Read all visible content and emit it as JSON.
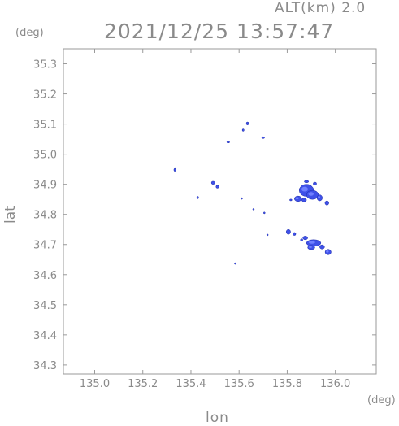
{
  "header": {
    "altitude_label": "ALT(km) 2.0",
    "timestamp": "2021/12/25 13:57:47"
  },
  "axes": {
    "x_unit": "(deg)",
    "y_unit": "(deg)",
    "x_label": "lon",
    "y_label": "lat"
  },
  "colors": {
    "frame": "#9a9a9a",
    "echo": "#3f51e8",
    "echo_light": "#7080ff",
    "echo_dark": "#1c2aa8",
    "text": "#8a8a8a"
  },
  "chart_data": {
    "type": "map",
    "xlim": [
      134.87,
      136.17
    ],
    "ylim": [
      34.27,
      35.35
    ],
    "x_ticks": [
      "135.0",
      "135.2",
      "135.4",
      "135.6",
      "135.8",
      "136.0"
    ],
    "x_tick_values": [
      135.0,
      135.2,
      135.4,
      135.6,
      135.8,
      136.0
    ],
    "y_ticks": [
      "34.3",
      "34.4",
      "34.5",
      "34.6",
      "34.7",
      "34.8",
      "34.9",
      "35.0",
      "35.1",
      "35.2",
      "35.3"
    ],
    "y_tick_values": [
      34.3,
      34.4,
      34.5,
      34.6,
      34.7,
      34.8,
      34.9,
      35.0,
      35.1,
      35.2,
      35.3
    ],
    "echoes": [
      {
        "lon": 135.635,
        "lat": 35.102,
        "w": 0.01,
        "h": 0.01
      },
      {
        "lon": 135.617,
        "lat": 35.08,
        "w": 0.008,
        "h": 0.008
      },
      {
        "lon": 135.7,
        "lat": 35.055,
        "w": 0.012,
        "h": 0.006
      },
      {
        "lon": 135.555,
        "lat": 35.04,
        "w": 0.012,
        "h": 0.005
      },
      {
        "lon": 135.333,
        "lat": 34.948,
        "w": 0.008,
        "h": 0.01
      },
      {
        "lon": 135.492,
        "lat": 34.905,
        "w": 0.014,
        "h": 0.01
      },
      {
        "lon": 135.51,
        "lat": 34.892,
        "w": 0.012,
        "h": 0.01
      },
      {
        "lon": 135.428,
        "lat": 34.856,
        "w": 0.008,
        "h": 0.008
      },
      {
        "lon": 135.611,
        "lat": 34.853,
        "w": 0.005,
        "h": 0.004
      },
      {
        "lon": 135.66,
        "lat": 34.817,
        "w": 0.004,
        "h": 0.004
      },
      {
        "lon": 135.705,
        "lat": 34.805,
        "w": 0.005,
        "h": 0.006
      },
      {
        "lon": 135.718,
        "lat": 34.732,
        "w": 0.006,
        "h": 0.004
      },
      {
        "lon": 135.584,
        "lat": 34.637,
        "w": 0.005,
        "h": 0.005
      },
      {
        "lon": 135.88,
        "lat": 34.88,
        "w": 0.06,
        "h": 0.04
      },
      {
        "lon": 135.905,
        "lat": 34.865,
        "w": 0.05,
        "h": 0.03
      },
      {
        "lon": 135.88,
        "lat": 34.909,
        "w": 0.018,
        "h": 0.008
      },
      {
        "lon": 135.915,
        "lat": 34.902,
        "w": 0.014,
        "h": 0.01
      },
      {
        "lon": 135.845,
        "lat": 34.852,
        "w": 0.03,
        "h": 0.018
      },
      {
        "lon": 135.87,
        "lat": 34.848,
        "w": 0.02,
        "h": 0.012
      },
      {
        "lon": 135.935,
        "lat": 34.855,
        "w": 0.022,
        "h": 0.02
      },
      {
        "lon": 135.965,
        "lat": 34.838,
        "w": 0.016,
        "h": 0.014
      },
      {
        "lon": 135.815,
        "lat": 34.848,
        "w": 0.01,
        "h": 0.006
      },
      {
        "lon": 135.805,
        "lat": 34.742,
        "w": 0.018,
        "h": 0.016
      },
      {
        "lon": 135.83,
        "lat": 34.735,
        "w": 0.012,
        "h": 0.01
      },
      {
        "lon": 135.875,
        "lat": 34.722,
        "w": 0.02,
        "h": 0.012
      },
      {
        "lon": 135.91,
        "lat": 34.705,
        "w": 0.06,
        "h": 0.022
      },
      {
        "lon": 135.9,
        "lat": 34.69,
        "w": 0.03,
        "h": 0.014
      },
      {
        "lon": 135.945,
        "lat": 34.692,
        "w": 0.02,
        "h": 0.014
      },
      {
        "lon": 135.97,
        "lat": 34.675,
        "w": 0.025,
        "h": 0.018
      },
      {
        "lon": 135.86,
        "lat": 34.715,
        "w": 0.01,
        "h": 0.008
      }
    ]
  }
}
